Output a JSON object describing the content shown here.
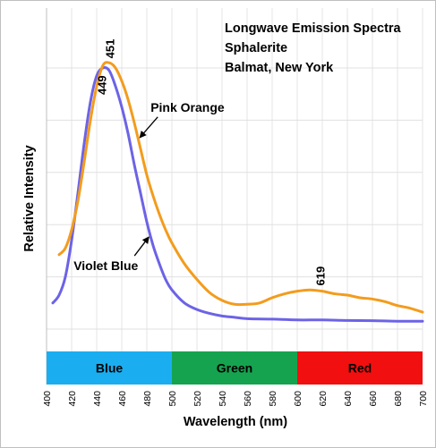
{
  "chart_data": {
    "type": "line",
    "title": [
      "Longwave Emission Spectra",
      "Sphalerite",
      "Balmat, New York"
    ],
    "xlabel": "Wavelength (nm)",
    "ylabel": "Relative Intensity",
    "xlim": [
      400,
      700
    ],
    "ylim": [
      0,
      1.15
    ],
    "x_ticks": [
      "400",
      "420",
      "440",
      "460",
      "480",
      "500",
      "520",
      "540",
      "560",
      "580",
      "600",
      "620",
      "640",
      "660",
      "680",
      "700"
    ],
    "y_gridlines": [
      0.0,
      0.2,
      0.4,
      0.6,
      0.8,
      1.0
    ],
    "grid": true,
    "series": [
      {
        "name": "Pink Orange",
        "color": "#f39c1d",
        "x": [
          410,
          415,
          420,
          425,
          430,
          435,
          440,
          445,
          450,
          455,
          460,
          465,
          470,
          475,
          480,
          485,
          490,
          495,
          500,
          510,
          520,
          530,
          540,
          550,
          560,
          570,
          580,
          590,
          600,
          610,
          620,
          630,
          640,
          650,
          660,
          670,
          680,
          690,
          700
        ],
        "y": [
          0.285,
          0.31,
          0.38,
          0.49,
          0.64,
          0.8,
          0.93,
          1.01,
          1.02,
          1.0,
          0.95,
          0.88,
          0.79,
          0.69,
          0.59,
          0.51,
          0.44,
          0.38,
          0.33,
          0.25,
          0.19,
          0.14,
          0.11,
          0.095,
          0.095,
          0.1,
          0.12,
          0.135,
          0.145,
          0.15,
          0.145,
          0.135,
          0.13,
          0.12,
          0.115,
          0.105,
          0.09,
          0.08,
          0.065
        ]
      },
      {
        "name": "Violet Blue",
        "color": "#6c63e6",
        "x": [
          405,
          410,
          415,
          420,
          425,
          430,
          435,
          440,
          445,
          450,
          455,
          460,
          465,
          470,
          475,
          480,
          485,
          490,
          495,
          500,
          510,
          520,
          530,
          540,
          550,
          560,
          580,
          600,
          620,
          640,
          660,
          680,
          700
        ],
        "y": [
          0.1,
          0.13,
          0.2,
          0.34,
          0.52,
          0.71,
          0.87,
          0.97,
          1.0,
          0.99,
          0.93,
          0.85,
          0.75,
          0.63,
          0.52,
          0.41,
          0.32,
          0.25,
          0.19,
          0.15,
          0.1,
          0.075,
          0.06,
          0.05,
          0.045,
          0.04,
          0.038,
          0.035,
          0.035,
          0.033,
          0.032,
          0.03,
          0.03
        ]
      }
    ],
    "peak_labels": [
      {
        "text": "451",
        "x": 451,
        "series": "Pink Orange"
      },
      {
        "text": "449",
        "x": 449,
        "series": "Violet Blue"
      },
      {
        "text": "619",
        "x": 619,
        "series": "Pink Orange"
      }
    ],
    "annotations": [
      {
        "text": "Pink Orange",
        "series": "Pink Orange",
        "x": 473
      },
      {
        "text": "Violet Blue",
        "series": "Violet Blue",
        "x": 483
      }
    ],
    "color_bands": [
      {
        "label": "Blue",
        "from": 400,
        "to": 500,
        "color": "#1aaef0"
      },
      {
        "label": "Green",
        "from": 500,
        "to": 600,
        "color": "#16a34f"
      },
      {
        "label": "Red",
        "from": 600,
        "to": 700,
        "color": "#f20f0f"
      }
    ]
  }
}
